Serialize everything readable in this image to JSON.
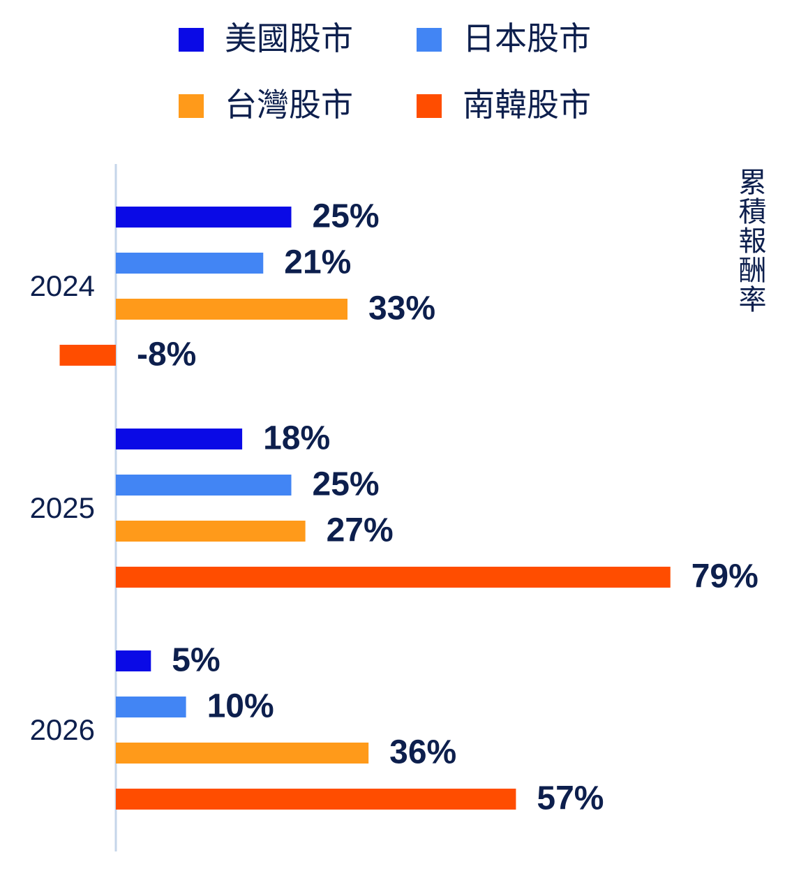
{
  "chart_data": {
    "type": "bar",
    "orientation": "horizontal",
    "x_axis_title": "累積報酬率",
    "categories": [
      "2024",
      "2025",
      "2026"
    ],
    "series": [
      {
        "name": "美國股市",
        "color": "#0a0ae6",
        "values": [
          25,
          18,
          5
        ],
        "value_labels": [
          "25%",
          "18%",
          "5%"
        ]
      },
      {
        "name": "日本股市",
        "color": "#4285f4",
        "values": [
          21,
          25,
          10
        ],
        "value_labels": [
          "21%",
          "25%",
          "10%"
        ]
      },
      {
        "name": "台灣股市",
        "color": "#ff9a1a",
        "values": [
          33,
          27,
          36
        ],
        "value_labels": [
          "33%",
          "27%",
          "36%"
        ]
      },
      {
        "name": "南韓股市",
        "color": "#ff4d00",
        "values": [
          -8,
          79,
          57
        ],
        "value_labels": [
          "-8%",
          "79%",
          "57%"
        ]
      }
    ]
  }
}
